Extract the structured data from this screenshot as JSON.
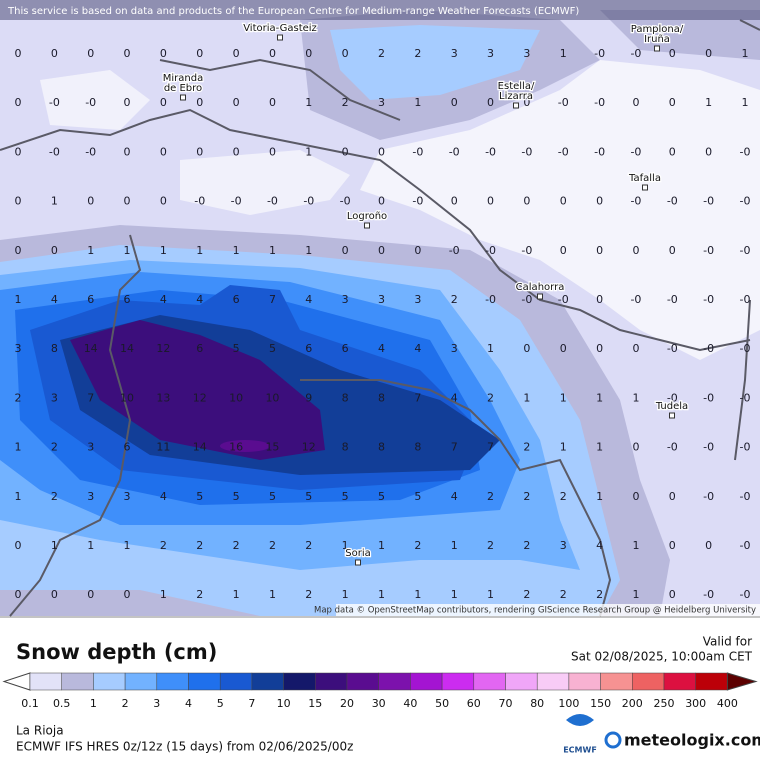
{
  "header": {
    "notice": "This service is based on data and products of the European Centre for Medium-range Weather Forecasts (ECMWF)"
  },
  "map": {
    "attribution": "Map data © OpenStreetMap contributors, rendering GIScience Research Group @ Heidelberg University",
    "cities": [
      {
        "lines": [
          "Vitoria-Gasteiz"
        ]
      },
      {
        "lines": [
          "Pamplona/",
          "Iruña"
        ]
      },
      {
        "lines": [
          "Miranda",
          "de Ebro"
        ]
      },
      {
        "lines": [
          "Estella/",
          "Lizarra"
        ]
      },
      {
        "lines": [
          "Tafalla"
        ]
      },
      {
        "lines": [
          "Logroño"
        ]
      },
      {
        "lines": [
          "Calahorra"
        ]
      },
      {
        "lines": [
          "Tudela"
        ]
      },
      {
        "lines": [
          "Soria"
        ]
      }
    ],
    "grid": [
      [
        "0",
        "0",
        "0",
        "0",
        "0",
        "0",
        "0",
        "0",
        "0",
        "0",
        "2",
        "2",
        "3",
        "3",
        "3",
        "1",
        "-0",
        "-0",
        "0",
        "0",
        "1"
      ],
      [
        "0",
        "-0",
        "-0",
        "0",
        "0",
        "0",
        "0",
        "0",
        "1",
        "2",
        "3",
        "1",
        "0",
        "0",
        "0",
        "-0",
        "-0",
        "0",
        "0",
        "1",
        "1"
      ],
      [
        "0",
        "-0",
        "-0",
        "0",
        "0",
        "0",
        "0",
        "0",
        "1",
        "0",
        "0",
        "-0",
        "-0",
        "-0",
        "-0",
        "-0",
        "-0",
        "-0",
        "0",
        "0",
        "-0"
      ],
      [
        "0",
        "1",
        "0",
        "0",
        "0",
        "-0",
        "-0",
        "-0",
        "-0",
        "-0",
        "0",
        "-0",
        "0",
        "0",
        "0",
        "0",
        "0",
        "-0",
        "-0",
        "-0",
        "-0"
      ],
      [
        "0",
        "0",
        "1",
        "1",
        "1",
        "1",
        "1",
        "1",
        "1",
        "0",
        "0",
        "0",
        "-0",
        "-0",
        "-0",
        "0",
        "0",
        "0",
        "0",
        "-0",
        "-0"
      ],
      [
        "1",
        "4",
        "6",
        "6",
        "4",
        "4",
        "6",
        "7",
        "4",
        "3",
        "3",
        "3",
        "2",
        "-0",
        "-0",
        "-0",
        "0",
        "-0",
        "-0",
        "-0",
        "-0"
      ],
      [
        "3",
        "8",
        "14",
        "14",
        "12",
        "6",
        "5",
        "5",
        "6",
        "6",
        "4",
        "4",
        "3",
        "1",
        "0",
        "0",
        "0",
        "0",
        "-0",
        "-0",
        "-0"
      ],
      [
        "2",
        "3",
        "7",
        "10",
        "13",
        "12",
        "10",
        "10",
        "9",
        "8",
        "8",
        "7",
        "4",
        "2",
        "1",
        "1",
        "1",
        "1",
        "-0",
        "-0",
        "-0"
      ],
      [
        "1",
        "2",
        "3",
        "6",
        "11",
        "14",
        "16",
        "15",
        "12",
        "8",
        "8",
        "8",
        "7",
        "7",
        "2",
        "1",
        "1",
        "0",
        "-0",
        "-0",
        "-0"
      ],
      [
        "1",
        "2",
        "3",
        "3",
        "4",
        "5",
        "5",
        "5",
        "5",
        "5",
        "5",
        "5",
        "4",
        "2",
        "2",
        "2",
        "1",
        "0",
        "0",
        "-0",
        "-0"
      ],
      [
        "0",
        "1",
        "1",
        "1",
        "2",
        "2",
        "2",
        "2",
        "2",
        "1",
        "1",
        "2",
        "1",
        "2",
        "2",
        "3",
        "4",
        "1",
        "0",
        "0",
        "-0"
      ],
      [
        "0",
        "0",
        "0",
        "0",
        "1",
        "2",
        "1",
        "1",
        "2",
        "1",
        "1",
        "1",
        "1",
        "1",
        "2",
        "2",
        "2",
        "1",
        "0",
        "-0",
        "-0"
      ]
    ]
  },
  "legend": {
    "title": "Snow depth (cm)",
    "labels": [
      "0.1",
      "0.5",
      "1",
      "2",
      "3",
      "4",
      "5",
      "7",
      "10",
      "15",
      "20",
      "30",
      "40",
      "50",
      "60",
      "70",
      "80",
      "100",
      "150",
      "200",
      "250",
      "300",
      "400"
    ],
    "colors": [
      "#ffffff",
      "#e2e2f8",
      "#b9b9dc",
      "#a6ccff",
      "#72b2ff",
      "#3f8ffa",
      "#1f70ec",
      "#1959d2",
      "#123e98",
      "#14186a",
      "#3c0e7c",
      "#5a0c90",
      "#7c12ac",
      "#a414d2",
      "#cc2cf0",
      "#e266f2",
      "#f0a6f8",
      "#f8ccf6",
      "#f8b2d2",
      "#f69292",
      "#ee6262",
      "#dc1040",
      "#bc0008",
      "#8c0010",
      "#5c0000"
    ]
  },
  "valid": {
    "label": "Valid for",
    "time": "Sat 02/08/2025, 10:00am CET"
  },
  "footer": {
    "region": "La Rioja",
    "model": "ECMWF IFS HRES 0z/12z (15 days) from 02/06/2025/00z",
    "ecmwf": "ECMWF",
    "brand": "meteologix.com"
  }
}
